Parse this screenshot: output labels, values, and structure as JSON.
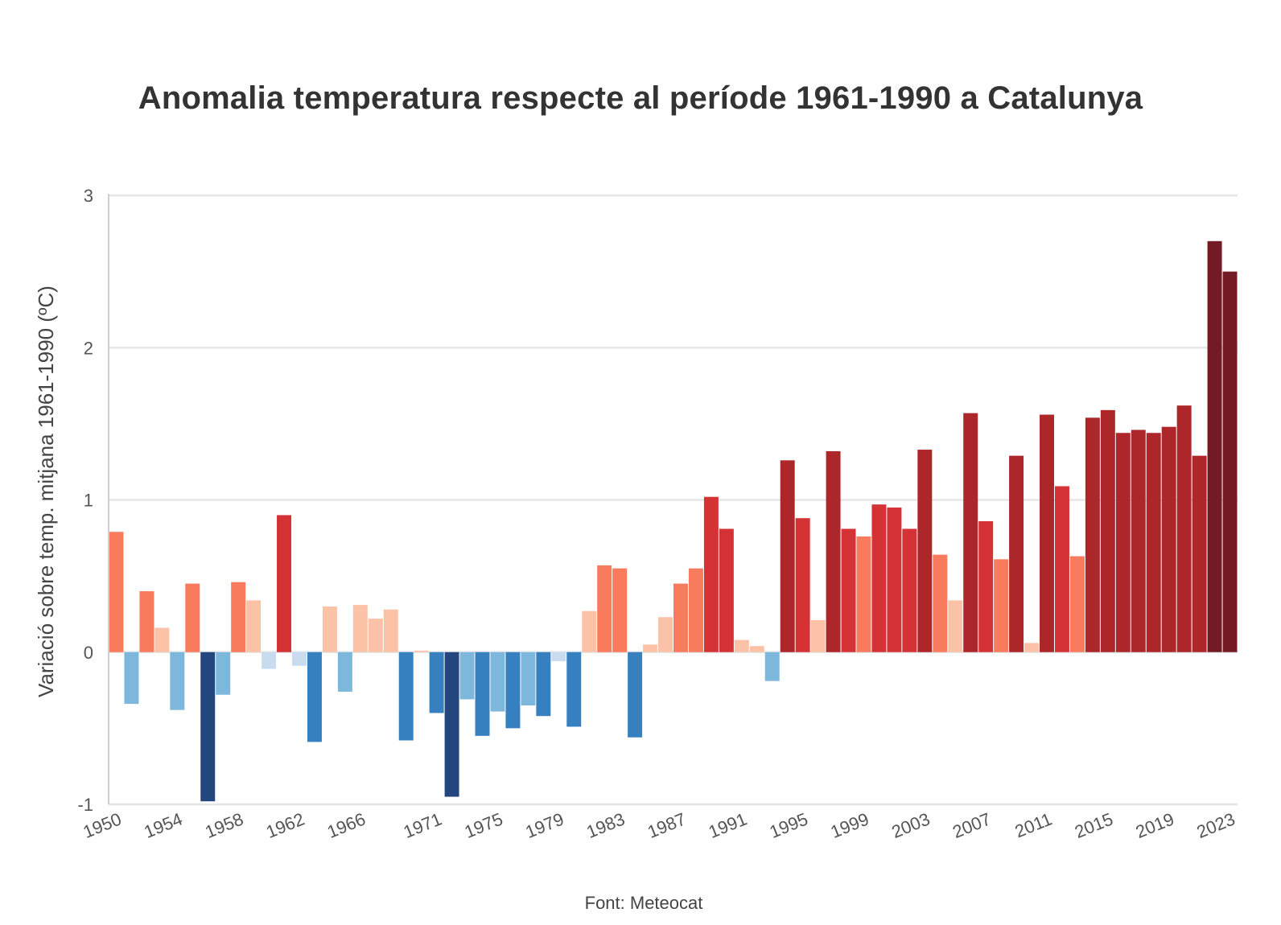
{
  "chart_data": {
    "type": "bar",
    "title": "Anomalia temperatura respecte al període 1961-1990 a Catalunya",
    "source": "Font: Meteocat",
    "ylabel": "Variació sobre temp. mitjana 1961-1990 (ºC)",
    "xlabel": "",
    "ylim": [
      -1,
      3
    ],
    "yticks": [
      -1,
      0,
      1,
      2,
      3
    ],
    "grid": true,
    "legend": "none",
    "x_tick_labels": [
      "1950",
      "1954",
      "1958",
      "1962",
      "1966",
      "1971",
      "1975",
      "1979",
      "1983",
      "1987",
      "1991",
      "1995",
      "1999",
      "2003",
      "2007",
      "2011",
      "2015",
      "2019",
      "2023"
    ],
    "categories": [
      1950,
      1951,
      1952,
      1953,
      1954,
      1955,
      1956,
      1957,
      1958,
      1959,
      1960,
      1961,
      1962,
      1963,
      1964,
      1965,
      1966,
      1967,
      1968,
      1969,
      1970,
      1971,
      1972,
      1973,
      1974,
      1975,
      1976,
      1977,
      1978,
      1979,
      1980,
      1981,
      1982,
      1983,
      1984,
      1985,
      1986,
      1987,
      1988,
      1989,
      1990,
      1991,
      1992,
      1993,
      1994,
      1995,
      1996,
      1997,
      1998,
      1999,
      2000,
      2001,
      2002,
      2003,
      2004,
      2005,
      2006,
      2007,
      2008,
      2009,
      2010,
      2011,
      2012,
      2013,
      2014,
      2015,
      2016,
      2017,
      2018,
      2019,
      2020,
      2021,
      2022,
      2023
    ],
    "values": [
      0.79,
      -0.34,
      0.4,
      0.16,
      -0.38,
      0.45,
      -0.98,
      -0.28,
      0.46,
      0.34,
      -0.11,
      0.9,
      -0.09,
      -0.59,
      0.3,
      -0.26,
      0.31,
      0.22,
      0.28,
      -0.58,
      0.01,
      -0.4,
      -0.95,
      -0.31,
      -0.55,
      -0.39,
      -0.5,
      -0.35,
      -0.42,
      -0.06,
      -0.49,
      0.27,
      0.57,
      0.55,
      -0.56,
      0.05,
      0.23,
      0.45,
      0.55,
      1.02,
      0.81,
      0.08,
      0.04,
      -0.19,
      1.26,
      0.88,
      0.21,
      1.32,
      0.81,
      0.76,
      0.97,
      0.95,
      0.81,
      1.33,
      0.64,
      0.34,
      1.57,
      0.86,
      0.61,
      1.29,
      0.06,
      1.56,
      1.09,
      0.63,
      1.54,
      1.59,
      1.44,
      1.46,
      1.44,
      1.48,
      1.62,
      1.29,
      2.7,
      2.5
    ],
    "color_scale": {
      "bins": [
        {
          "max": -0.75,
          "color": "#23467f"
        },
        {
          "max": -0.4,
          "color": "#3780bf"
        },
        {
          "max": -0.15,
          "color": "#7db7db"
        },
        {
          "max": 0,
          "color": "#c9dbee"
        },
        {
          "max": 0.35,
          "color": "#fbc2a8"
        },
        {
          "max": 0.8,
          "color": "#f87b5d"
        },
        {
          "max": 1.25,
          "color": "#d43234"
        },
        {
          "max": 2.0,
          "color": "#ad262a"
        },
        {
          "max": 9,
          "color": "#731a24"
        }
      ]
    },
    "colors": {
      "grid": "#e6e6e6",
      "axis_line": "#cfcfcf",
      "title": "#333333",
      "text": "#555555"
    }
  }
}
